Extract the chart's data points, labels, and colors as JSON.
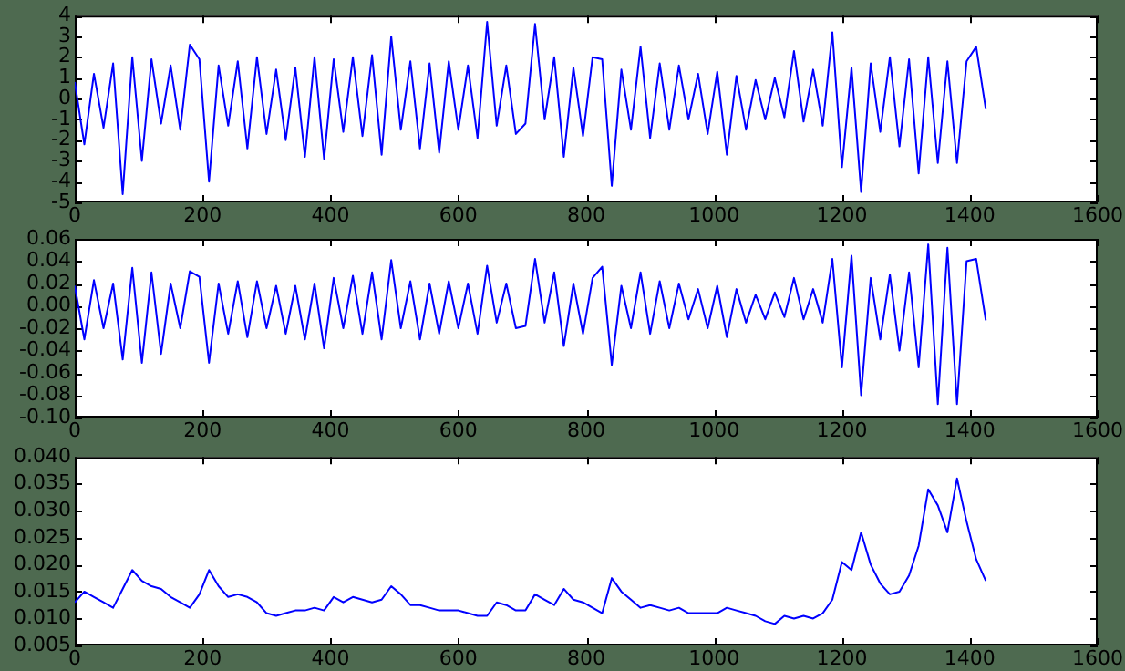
{
  "chart_data": [
    {
      "type": "line",
      "x": [
        0,
        15,
        30,
        45,
        60,
        75,
        90,
        105,
        120,
        135,
        150,
        165,
        180,
        195,
        210,
        225,
        240,
        255,
        270,
        285,
        300,
        315,
        330,
        345,
        360,
        375,
        390,
        405,
        420,
        435,
        450,
        465,
        480,
        495,
        510,
        525,
        540,
        555,
        570,
        585,
        600,
        615,
        630,
        645,
        660,
        675,
        690,
        705,
        720,
        735,
        750,
        765,
        780,
        795,
        810,
        825,
        840,
        855,
        870,
        885,
        900,
        915,
        930,
        945,
        960,
        975,
        990,
        1005,
        1020,
        1035,
        1050,
        1065,
        1080,
        1095,
        1110,
        1125,
        1140,
        1155,
        1170,
        1185,
        1200,
        1215,
        1230,
        1245,
        1260,
        1275,
        1290,
        1305,
        1320,
        1335,
        1350,
        1365,
        1380,
        1395,
        1410,
        1425
      ],
      "values": [
        0.8,
        -2.2,
        1.2,
        -1.4,
        1.7,
        -4.6,
        2.0,
        -3.0,
        1.9,
        -1.2,
        1.6,
        -1.5,
        2.6,
        1.9,
        -4.0,
        1.6,
        -1.3,
        1.8,
        -2.4,
        2.0,
        -1.7,
        1.4,
        -2.0,
        1.5,
        -2.8,
        2.0,
        -2.9,
        1.9,
        -1.6,
        2.0,
        -1.8,
        2.1,
        -2.7,
        3.0,
        -1.5,
        1.8,
        -2.4,
        1.7,
        -2.6,
        1.8,
        -1.5,
        1.6,
        -1.9,
        3.7,
        -1.3,
        1.6,
        -1.7,
        -1.2,
        3.6,
        -1.0,
        2.0,
        -2.8,
        1.5,
        -1.8,
        2.0,
        1.9,
        -4.2,
        1.4,
        -1.5,
        2.5,
        -1.9,
        1.7,
        -1.5,
        1.6,
        -1.0,
        1.2,
        -1.7,
        1.3,
        -2.7,
        1.1,
        -1.5,
        0.9,
        -1.0,
        1.0,
        -0.9,
        2.3,
        -1.1,
        1.4,
        -1.3,
        3.2,
        -3.3,
        1.5,
        -4.5,
        1.7,
        -1.6,
        2.0,
        -2.3,
        1.9,
        -3.6,
        2.0,
        -3.1,
        1.8,
        -3.1,
        1.8,
        2.5,
        -0.5
      ],
      "color": "#0000ff",
      "xlim": [
        0,
        1600
      ],
      "xticks": [
        0,
        200,
        400,
        600,
        800,
        1000,
        1200,
        1400,
        1600
      ],
      "ylim": [
        -5,
        4
      ],
      "yticks": [
        -5,
        -4,
        -3,
        -2,
        -1,
        0,
        1,
        2,
        3,
        4
      ],
      "grid": false,
      "legend": false
    },
    {
      "type": "line",
      "x": [
        0,
        15,
        30,
        45,
        60,
        75,
        90,
        105,
        120,
        135,
        150,
        165,
        180,
        195,
        210,
        225,
        240,
        255,
        270,
        285,
        300,
        315,
        330,
        345,
        360,
        375,
        390,
        405,
        420,
        435,
        450,
        465,
        480,
        495,
        510,
        525,
        540,
        555,
        570,
        585,
        600,
        615,
        630,
        645,
        660,
        675,
        690,
        705,
        720,
        735,
        750,
        765,
        780,
        795,
        810,
        825,
        840,
        855,
        870,
        885,
        900,
        915,
        930,
        945,
        960,
        975,
        990,
        1005,
        1020,
        1035,
        1050,
        1065,
        1080,
        1095,
        1110,
        1125,
        1140,
        1155,
        1170,
        1185,
        1200,
        1215,
        1230,
        1245,
        1260,
        1275,
        1290,
        1305,
        1320,
        1335,
        1350,
        1365,
        1380,
        1395,
        1410,
        1425
      ],
      "values": [
        0.018,
        -0.03,
        0.023,
        -0.02,
        0.02,
        -0.048,
        0.034,
        -0.051,
        0.03,
        -0.043,
        0.02,
        -0.02,
        0.031,
        0.026,
        -0.051,
        0.02,
        -0.025,
        0.022,
        -0.028,
        0.022,
        -0.02,
        0.018,
        -0.025,
        0.018,
        -0.03,
        0.02,
        -0.038,
        0.025,
        -0.02,
        0.027,
        -0.025,
        0.03,
        -0.03,
        0.041,
        -0.02,
        0.022,
        -0.03,
        0.02,
        -0.025,
        0.022,
        -0.02,
        0.02,
        -0.025,
        0.036,
        -0.015,
        0.02,
        -0.02,
        -0.018,
        0.042,
        -0.015,
        0.03,
        -0.036,
        0.02,
        -0.025,
        0.025,
        0.035,
        -0.053,
        0.018,
        -0.02,
        0.03,
        -0.025,
        0.022,
        -0.02,
        0.02,
        -0.012,
        0.015,
        -0.02,
        0.018,
        -0.028,
        0.015,
        -0.015,
        0.01,
        -0.012,
        0.012,
        -0.01,
        0.025,
        -0.012,
        0.015,
        -0.015,
        0.042,
        -0.055,
        0.045,
        -0.08,
        0.025,
        -0.03,
        0.028,
        -0.04,
        0.03,
        -0.055,
        0.055,
        -0.088,
        0.052,
        -0.088,
        0.04,
        0.042,
        -0.013
      ],
      "color": "#0000ff",
      "xlim": [
        0,
        1600
      ],
      "xticks": [
        0,
        200,
        400,
        600,
        800,
        1000,
        1200,
        1400,
        1600
      ],
      "ylim": [
        -0.1,
        0.06
      ],
      "yticks": [
        {
          "value": -0.1,
          "label": "-0.10"
        },
        {
          "value": -0.08,
          "label": "-0.08"
        },
        {
          "value": -0.06,
          "label": "-0.06"
        },
        {
          "value": -0.04,
          "label": "-0.04"
        },
        {
          "value": -0.02,
          "label": "-0.02"
        },
        {
          "value": 0,
          "label": "0.00"
        },
        0.02,
        0.04,
        0.06
      ],
      "grid": false,
      "legend": false
    },
    {
      "type": "line",
      "x": [
        0,
        15,
        30,
        45,
        60,
        75,
        90,
        105,
        120,
        135,
        150,
        165,
        180,
        195,
        210,
        225,
        240,
        255,
        270,
        285,
        300,
        315,
        330,
        345,
        360,
        375,
        390,
        405,
        420,
        435,
        450,
        465,
        480,
        495,
        510,
        525,
        540,
        555,
        570,
        585,
        600,
        615,
        630,
        645,
        660,
        675,
        690,
        705,
        720,
        735,
        750,
        765,
        780,
        795,
        810,
        825,
        840,
        855,
        870,
        885,
        900,
        915,
        930,
        945,
        960,
        975,
        990,
        1005,
        1020,
        1035,
        1050,
        1065,
        1080,
        1095,
        1110,
        1125,
        1140,
        1155,
        1170,
        1185,
        1200,
        1215,
        1230,
        1245,
        1260,
        1275,
        1290,
        1305,
        1320,
        1335,
        1350,
        1365,
        1380,
        1395,
        1410,
        1425
      ],
      "values": [
        0.013,
        0.015,
        0.014,
        0.013,
        0.012,
        0.0155,
        0.019,
        0.017,
        0.016,
        0.0155,
        0.014,
        0.013,
        0.012,
        0.0145,
        0.019,
        0.016,
        0.014,
        0.0145,
        0.014,
        0.013,
        0.011,
        0.0105,
        0.011,
        0.0115,
        0.0115,
        0.012,
        0.0115,
        0.014,
        0.013,
        0.014,
        0.0135,
        0.013,
        0.0135,
        0.016,
        0.0145,
        0.0125,
        0.0125,
        0.012,
        0.0115,
        0.0115,
        0.0115,
        0.011,
        0.0105,
        0.0105,
        0.013,
        0.0125,
        0.0115,
        0.0115,
        0.0145,
        0.0135,
        0.0125,
        0.0155,
        0.0135,
        0.013,
        0.012,
        0.011,
        0.0175,
        0.015,
        0.0135,
        0.012,
        0.0125,
        0.012,
        0.0115,
        0.012,
        0.011,
        0.011,
        0.011,
        0.011,
        0.012,
        0.0115,
        0.011,
        0.0105,
        0.0095,
        0.009,
        0.0105,
        0.01,
        0.0105,
        0.01,
        0.011,
        0.0135,
        0.0205,
        0.019,
        0.026,
        0.02,
        0.0165,
        0.0145,
        0.015,
        0.018,
        0.0235,
        0.034,
        0.031,
        0.026,
        0.036,
        0.028,
        0.021,
        0.017
      ],
      "color": "#0000ff",
      "xlim": [
        0,
        1600
      ],
      "xticks": [
        0,
        200,
        400,
        600,
        800,
        1000,
        1200,
        1400,
        1600
      ],
      "ylim": [
        0.005,
        0.04
      ],
      "yticks": [
        {
          "value": 0.005,
          "label": "0.005"
        },
        {
          "value": 0.01,
          "label": "0.010"
        },
        0.015,
        {
          "value": 0.02,
          "label": "0.020"
        },
        0.025,
        {
          "value": 0.03,
          "label": "0.030"
        },
        0.035,
        {
          "value": 0.04,
          "label": "0.040"
        }
      ],
      "grid": false,
      "legend": false
    }
  ]
}
